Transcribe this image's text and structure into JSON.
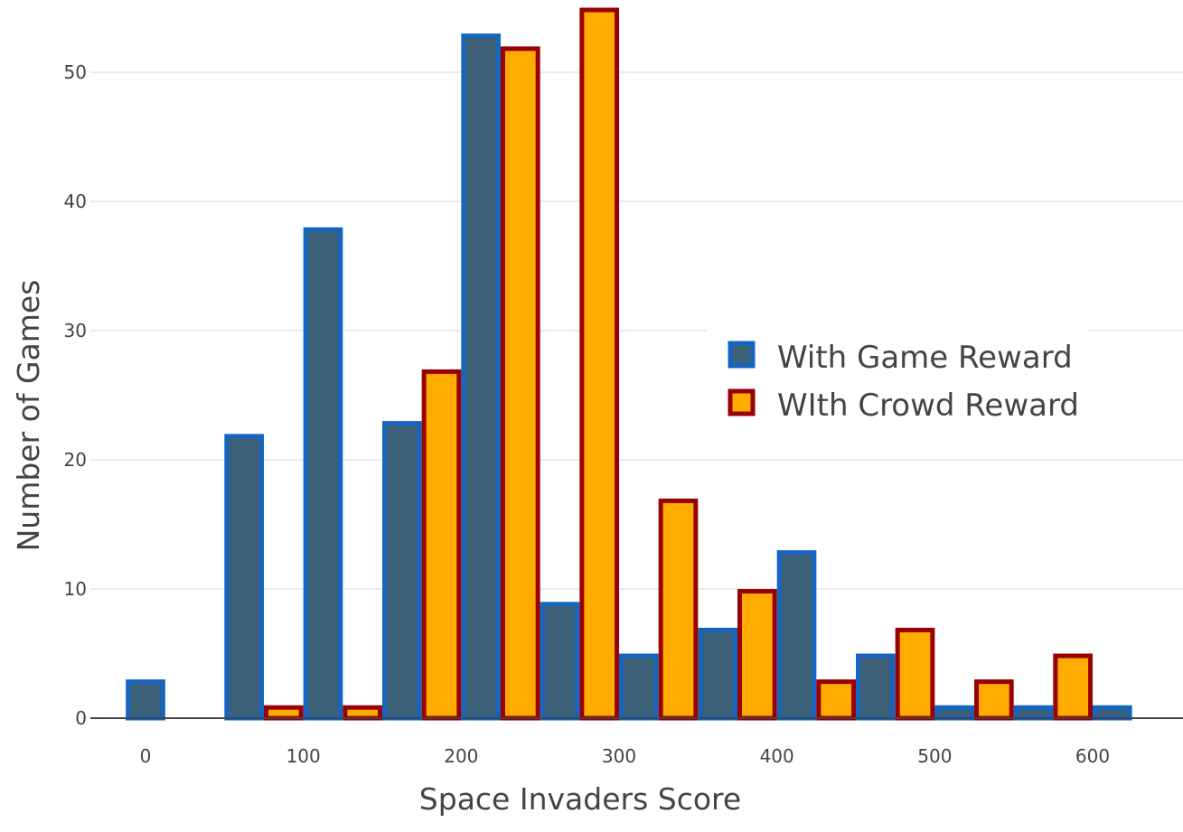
{
  "chart_data": {
    "type": "bar",
    "xlabel": "Space Invaders Score",
    "ylabel": "Number of Games",
    "xlim": [
      -25,
      650
    ],
    "ylim": [
      0,
      56
    ],
    "x_ticks": [
      0,
      100,
      200,
      300,
      400,
      500,
      600
    ],
    "y_ticks": [
      0,
      10,
      20,
      30,
      40,
      50
    ],
    "grid": "horizontal",
    "legend_position": "right",
    "series": [
      {
        "name": "With Game Reward",
        "fill": "#3d6079",
        "stroke": "#1565c0",
        "x": [
          0,
          62.5,
          112.5,
          162.5,
          212.5,
          262.5,
          312.5,
          362.5,
          412.5,
          462.5,
          512.5,
          562.5,
          612.5
        ],
        "values": [
          3,
          22,
          38,
          23,
          53,
          9,
          5,
          7,
          13,
          5,
          1,
          1,
          1
        ]
      },
      {
        "name": "WIth Crowd Reward",
        "fill": "#ffab00",
        "stroke": "#990000",
        "x": [
          87.5,
          137.5,
          187.5,
          237.5,
          287.5,
          337.5,
          387.5,
          437.5,
          487.5,
          537.5,
          587.5
        ],
        "values": [
          1,
          1,
          27,
          52,
          55,
          17,
          10,
          3,
          7,
          3,
          5
        ]
      }
    ]
  }
}
